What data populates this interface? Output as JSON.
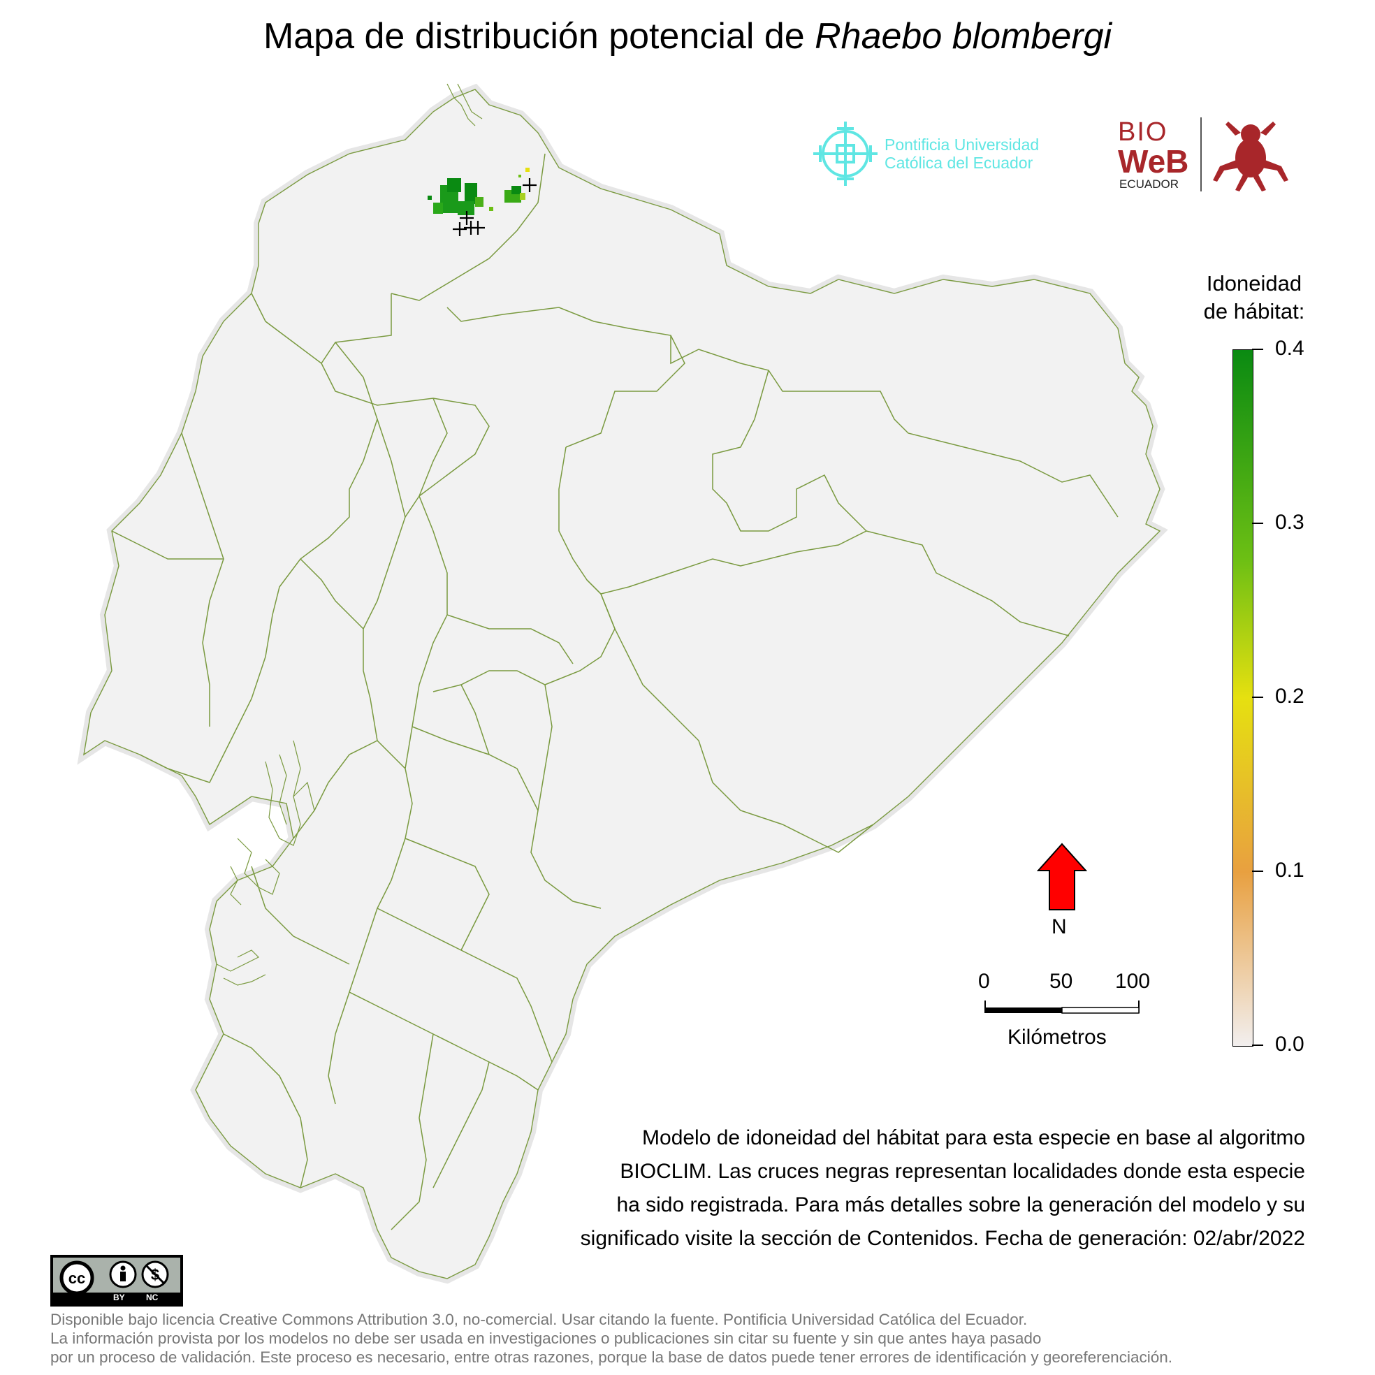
{
  "title": {
    "text": "Mapa de distribución potencial de ",
    "species": "Rhaebo blombergi"
  },
  "logos": {
    "puce_line1": "Pontificia Universidad",
    "puce_line2": "Católica del Ecuador",
    "bioweb_line1": "BIO",
    "bioweb_line2": "WeB",
    "bioweb_line3": "ECUADOR"
  },
  "legend": {
    "title_line1": "Idoneidad",
    "title_line2": "de hábitat:",
    "ticks": [
      "0.4",
      "0.3",
      "0.2",
      "0.1",
      "0.0"
    ],
    "colors": {
      "high": "#0a8a12",
      "mid_high": "#6cbf14",
      "mid": "#e6e010",
      "mid_low": "#e8a040",
      "low": "#f2efef"
    }
  },
  "north_arrow": {
    "label": "N",
    "color": "#ff0000"
  },
  "scale_bar": {
    "labels": [
      "0",
      "50",
      "100"
    ],
    "unit": "Kilómetros"
  },
  "caption": [
    "Modelo de idoneidad del hábitat para esta especie en base al algoritmo",
    "BIOCLIM. Las cruces negras representan localidades donde esta especie",
    "ha sido registrada. Para más detalles sobre la generación del modelo y su",
    "significado visite la sección de Contenidos. Fecha de generación: 02/abr/2022"
  ],
  "license_badge": {
    "by": "BY",
    "nc": "NC"
  },
  "footer": [
    "Disponible bajo licencia Creative Commons Attribution 3.0, no-comercial. Usar citando la fuente. Pontificia Universidad Católica del Ecuador.",
    "La información provista por los modelos no debe ser usada en investigaciones o publicaciones sin citar su fuente y sin que antes haya pasado",
    "por un proceso de validación. Este proceso es necesario, entre otras razones, porque la base de datos puede tener errores de identificación y georeferenciación."
  ],
  "map_colors": {
    "land": "#f2f2f2",
    "border": "#7a9a40",
    "occurrence": "#000000"
  }
}
